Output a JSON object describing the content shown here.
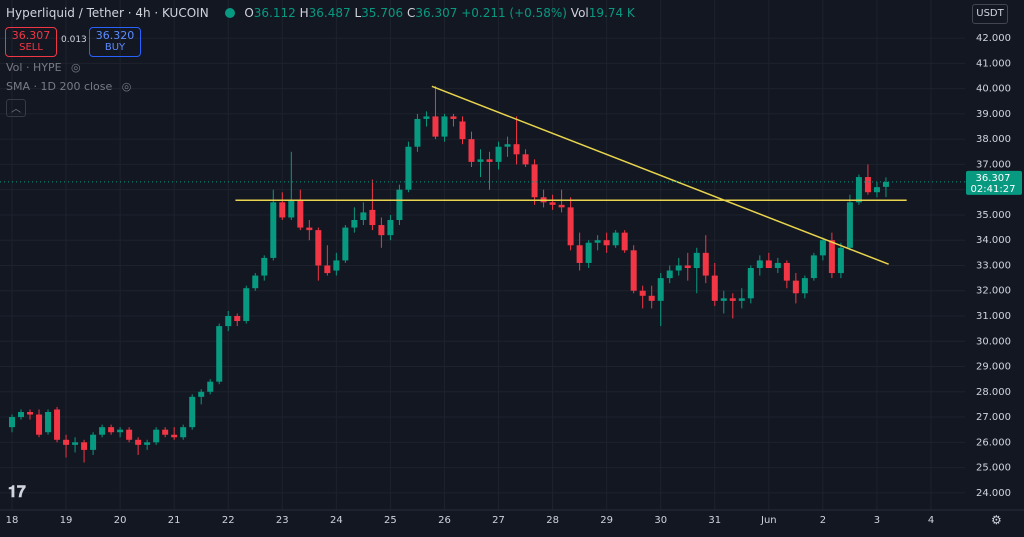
{
  "header": {
    "symbol": "Hyperliquid / Tether · 4h · KUCOIN",
    "o": "O",
    "h": "H",
    "l": "L",
    "c": "C",
    "change": "+0.211 (+0.58%)",
    "vol_label": "Vol",
    "vol": "19.74 K",
    "sell": "SELL",
    "spread": "0.013",
    "buy_price": "36.320",
    "buy": "BUY",
    "ind1": "Vol · HYPE",
    "ind2": "SMA · 1D 200 close",
    "currency": "USDT",
    "countdown": "02:41:27"
  },
  "chart_data": {
    "type": "candlestick",
    "up_color": "#089981",
    "down_color": "#f23645",
    "grid": true,
    "categories": [
      "18",
      null,
      null,
      null,
      null,
      null,
      "19",
      null,
      null,
      null,
      null,
      null,
      "20",
      null,
      null,
      null,
      null,
      null,
      "21",
      null,
      null,
      null,
      null,
      null,
      "22",
      null,
      null,
      null,
      null,
      null,
      "23",
      null,
      null,
      null,
      null,
      null,
      "24",
      null,
      null,
      null,
      null,
      null,
      "25",
      null,
      null,
      null,
      null,
      null,
      "26",
      null,
      null,
      null,
      null,
      null,
      "27",
      null,
      null,
      null,
      null,
      null,
      "28",
      null,
      null,
      null,
      null,
      null,
      "29",
      null,
      null,
      null,
      null,
      null,
      "30",
      null,
      null,
      null,
      null,
      null,
      "31",
      null,
      null,
      null,
      null,
      null,
      "Jun",
      null,
      null,
      null,
      null,
      null,
      "2",
      null,
      null,
      null,
      null,
      null,
      "3",
      null,
      null,
      null,
      null,
      null,
      "4"
    ],
    "open": [
      26.6,
      27.0,
      27.2,
      27.1,
      26.4,
      27.3,
      26.1,
      25.9,
      26.0,
      25.7,
      26.3,
      26.6,
      26.4,
      26.5,
      26.1,
      25.9,
      26.0,
      26.5,
      26.3,
      26.2,
      26.6,
      27.8,
      28.0,
      28.4,
      30.6,
      31.0,
      30.8,
      32.1,
      32.6,
      33.3,
      35.5,
      34.9,
      35.6,
      34.5,
      34.4,
      33.0,
      32.8,
      33.2,
      34.5,
      34.8,
      35.2,
      34.6,
      34.2,
      34.8,
      36.0,
      37.7,
      38.8,
      38.9,
      38.1,
      38.9,
      38.7,
      38.0,
      37.1,
      37.2,
      37.1,
      37.7,
      37.8,
      37.4,
      37.0,
      35.7,
      35.5,
      35.4,
      35.3,
      33.8,
      33.1,
      33.9,
      34.0,
      33.8,
      34.3,
      33.6,
      32.0,
      31.8,
      31.6,
      32.5,
      32.8,
      33.0,
      32.9,
      33.5,
      32.6,
      31.6,
      31.7,
      31.6,
      31.7,
      32.9,
      33.2,
      32.9,
      33.1,
      32.4,
      31.9,
      32.5,
      33.4,
      34.0,
      32.7,
      33.7,
      35.5,
      36.5,
      35.9,
      36.112,
      null,
      null,
      null,
      null,
      null
    ],
    "high": [
      27.1,
      27.3,
      27.3,
      27.3,
      27.3,
      27.4,
      26.3,
      26.2,
      26.1,
      26.4,
      26.7,
      26.7,
      26.6,
      26.6,
      26.2,
      26.1,
      26.6,
      26.6,
      26.6,
      26.7,
      27.9,
      28.1,
      28.5,
      30.7,
      31.2,
      31.1,
      32.2,
      32.7,
      33.4,
      36.0,
      35.9,
      37.5,
      36.0,
      34.8,
      34.5,
      33.8,
      33.5,
      34.6,
      35.3,
      35.5,
      36.4,
      34.9,
      35.0,
      36.2,
      37.9,
      39.0,
      39.1,
      40.1,
      39.0,
      39.0,
      38.9,
      38.3,
      37.6,
      37.5,
      37.9,
      38.1,
      38.9,
      37.6,
      37.2,
      36.0,
      35.8,
      36.0,
      35.7,
      34.3,
      34.0,
      34.2,
      34.3,
      34.4,
      34.4,
      33.8,
      32.2,
      32.2,
      32.7,
      33.0,
      33.3,
      33.5,
      33.7,
      34.2,
      33.1,
      32.0,
      31.9,
      32.1,
      33.0,
      33.4,
      33.5,
      33.3,
      33.2,
      32.7,
      32.6,
      33.5,
      34.1,
      34.3,
      33.9,
      35.8,
      36.6,
      37.0,
      36.3,
      36.487,
      null,
      null,
      null,
      null,
      null
    ],
    "low": [
      26.4,
      26.9,
      26.9,
      26.2,
      26.3,
      26.0,
      25.4,
      25.6,
      25.2,
      25.5,
      26.2,
      26.3,
      26.2,
      26.0,
      25.5,
      25.7,
      25.9,
      26.2,
      26.1,
      26.1,
      26.5,
      27.5,
      27.9,
      28.3,
      30.4,
      30.6,
      30.7,
      32.0,
      32.4,
      33.2,
      34.8,
      34.8,
      34.4,
      34.0,
      32.4,
      32.6,
      32.6,
      33.1,
      34.3,
      34.6,
      34.4,
      33.7,
      34.0,
      34.6,
      35.9,
      37.5,
      38.5,
      38.0,
      37.9,
      38.5,
      37.8,
      36.9,
      36.5,
      36.0,
      36.8,
      37.3,
      37.0,
      36.9,
      35.4,
      35.3,
      35.2,
      35.1,
      33.6,
      32.8,
      32.9,
      33.6,
      33.5,
      33.7,
      33.5,
      31.9,
      31.3,
      31.3,
      30.6,
      32.3,
      32.6,
      32.4,
      31.9,
      32.3,
      31.4,
      31.1,
      30.9,
      31.3,
      31.5,
      32.6,
      32.9,
      32.7,
      32.1,
      31.5,
      31.7,
      32.4,
      33.2,
      32.5,
      32.5,
      33.6,
      35.4,
      35.8,
      35.7,
      35.706,
      null,
      null,
      null,
      null,
      null
    ],
    "close": [
      27.0,
      27.2,
      27.1,
      26.3,
      27.2,
      26.1,
      25.9,
      26.0,
      25.7,
      26.3,
      26.6,
      26.4,
      26.5,
      26.1,
      25.9,
      26.0,
      26.5,
      26.3,
      26.2,
      26.6,
      27.8,
      28.0,
      28.4,
      30.6,
      31.0,
      30.8,
      32.1,
      32.6,
      33.3,
      35.5,
      34.9,
      35.6,
      34.5,
      34.4,
      33.0,
      32.7,
      33.2,
      34.5,
      34.8,
      35.1,
      34.6,
      34.2,
      34.8,
      36.0,
      37.7,
      38.8,
      38.9,
      38.1,
      38.9,
      38.8,
      38.0,
      37.1,
      37.2,
      37.1,
      37.7,
      37.8,
      37.4,
      37.0,
      35.7,
      35.5,
      35.4,
      35.3,
      33.8,
      33.1,
      33.9,
      34.0,
      33.8,
      34.3,
      33.6,
      32.0,
      31.8,
      31.6,
      32.5,
      32.8,
      33.0,
      32.9,
      33.5,
      32.6,
      31.6,
      31.7,
      31.6,
      31.7,
      32.9,
      33.2,
      32.9,
      33.1,
      32.4,
      31.9,
      32.5,
      33.4,
      34.0,
      32.7,
      33.7,
      35.5,
      36.5,
      35.9,
      36.1,
      36.307,
      null,
      null,
      null,
      null,
      null
    ],
    "ylim": [
      23.4,
      42.4
    ],
    "yticks": [
      {
        "value": 24,
        "label": "24.000"
      },
      {
        "value": 25,
        "label": "25.000"
      },
      {
        "value": 26,
        "label": "26.000"
      },
      {
        "value": 27,
        "label": "27.000"
      },
      {
        "value": 28,
        "label": "28.000"
      },
      {
        "value": 29,
        "label": "29.000"
      },
      {
        "value": 30,
        "label": "30.000"
      },
      {
        "value": 31,
        "label": "31.000"
      },
      {
        "value": 32,
        "label": "32.000"
      },
      {
        "value": 33,
        "label": "33.000"
      },
      {
        "value": 34,
        "label": "34.000"
      },
      {
        "value": 35,
        "label": "35.000"
      },
      {
        "value": 36,
        "label": "36.000"
      },
      {
        "value": 37,
        "label": "37.000"
      },
      {
        "value": 38,
        "label": "38.000"
      },
      {
        "value": 39,
        "label": "39.000"
      },
      {
        "value": 40,
        "label": "40.000"
      },
      {
        "value": 41,
        "label": "41.000"
      },
      {
        "value": 42,
        "label": "42.000"
      }
    ],
    "drawings": [
      {
        "x": [
          46.6,
          97.3
        ],
        "y": [
          40.09,
          33.05
        ],
        "color": "#e8d44d"
      },
      {
        "x": [
          24.8,
          99.3
        ],
        "y": [
          35.58,
          35.58
        ],
        "color": "#e8d44d"
      }
    ]
  }
}
